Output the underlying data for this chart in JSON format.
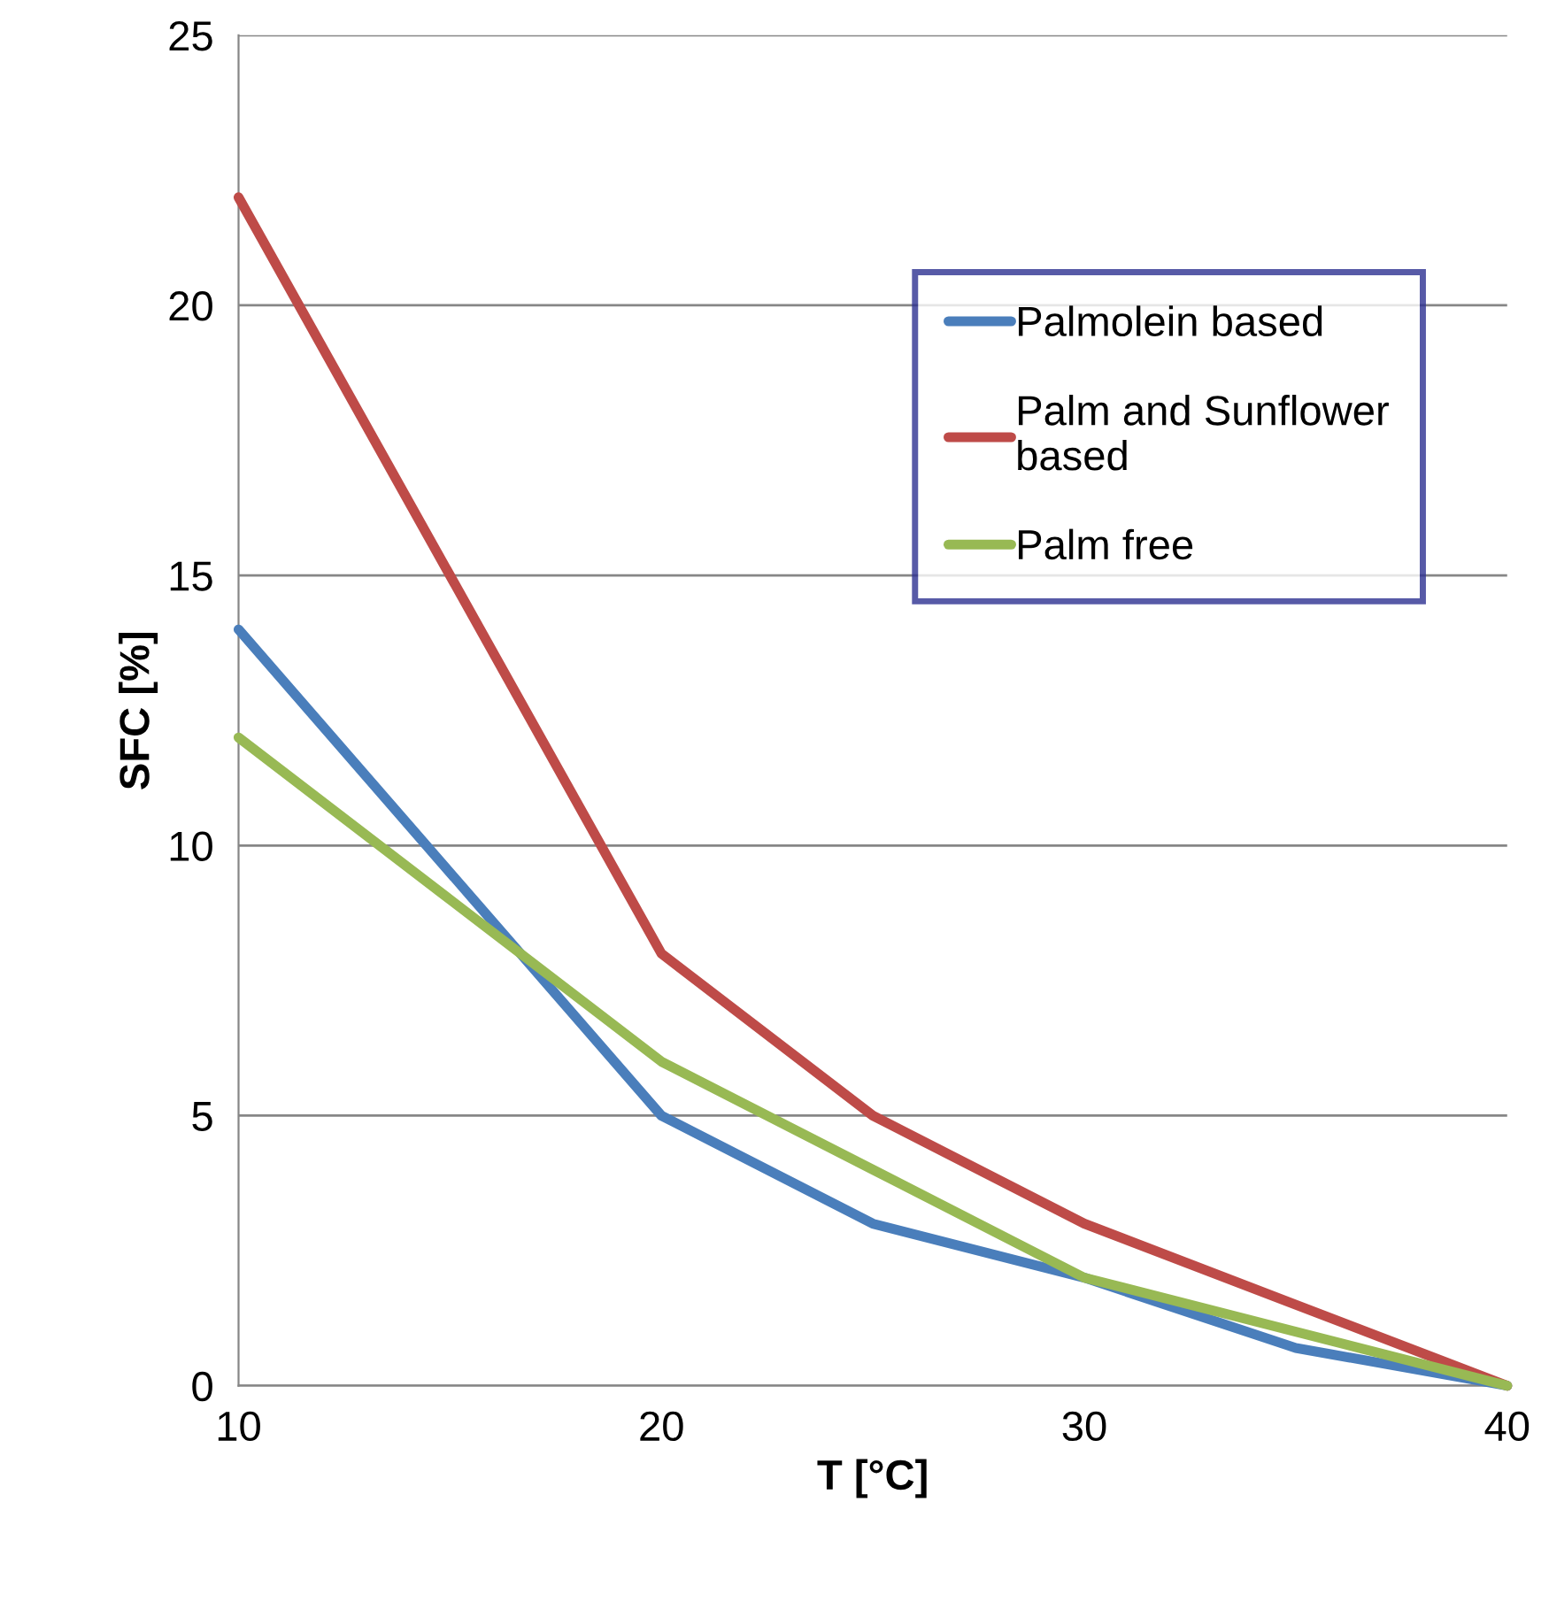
{
  "chart_data": {
    "type": "line",
    "xlabel": "T [°C]",
    "ylabel": "SFC [%]",
    "x": [
      10,
      20,
      25,
      30,
      35,
      40
    ],
    "series": [
      {
        "name": "Palmolein based",
        "color": "#4a7ebb",
        "values": [
          14,
          5,
          3,
          2,
          0.7,
          0
        ]
      },
      {
        "name": "Palm and Sunflower\nbased",
        "color": "#be4b48",
        "values": [
          22,
          8,
          5,
          3,
          1.5,
          0
        ]
      },
      {
        "name": "Palm free",
        "color": "#98b954",
        "values": [
          12,
          6,
          4,
          2,
          1,
          0
        ]
      }
    ],
    "xlim": [
      10,
      40
    ],
    "xticks": [
      10,
      20,
      30,
      40
    ],
    "ylim": [
      0,
      25
    ],
    "yticks": [
      0,
      5,
      10,
      15,
      20,
      25
    ],
    "grid": "y",
    "legend": "top right",
    "marker": "none",
    "line_style": "solid"
  }
}
